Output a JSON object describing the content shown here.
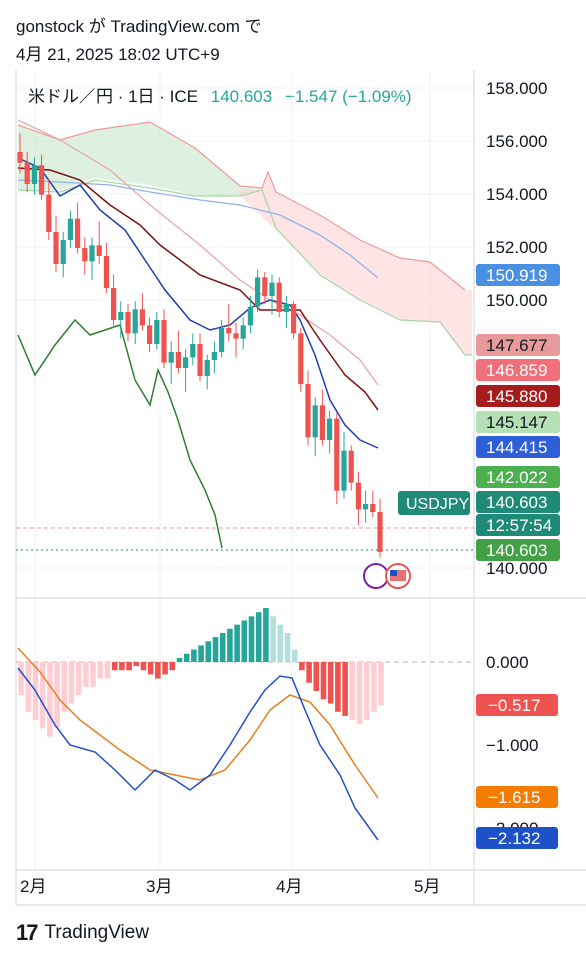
{
  "header": {
    "title": "gonstock が TradingView.com で",
    "timestamp": "4月 21, 2025 18:02 UTC+9"
  },
  "legend": {
    "symbol": "米ドル／円 · 1日 · ICE",
    "last": "140.603",
    "change": "−1.547 (−1.09%)"
  },
  "price_axis_labels": [
    "158.000",
    "156.000",
    "154.000",
    "152.000",
    "150.000",
    "140.000"
  ],
  "price_tags": [
    {
      "label": "150.919",
      "color": "#4a90e2"
    },
    {
      "label": "147.677",
      "color": "#e79a9a"
    },
    {
      "label": "146.859",
      "color": "#ef6f7a"
    },
    {
      "label": "145.880",
      "color": "#a61c1c"
    },
    {
      "label": "145.147",
      "color": "#b5dfb4"
    },
    {
      "label": "144.415",
      "color": "#2f5fd8"
    },
    {
      "label": "142.022",
      "color": "#4caf50"
    },
    {
      "label": "140.603",
      "color": "#1f8a78"
    },
    {
      "label": "12:57:54",
      "color": "#1f8a78"
    },
    {
      "label": "140.603",
      "color": "#43a047"
    }
  ],
  "symbol_tag": {
    "label": "USDJPY",
    "color": "#1f8a78"
  },
  "macd_axis_labels": [
    "0.000",
    "−1.000",
    "−2.000"
  ],
  "macd_tags": [
    {
      "label": "−0.517",
      "color": "#ef5350"
    },
    {
      "label": "−1.615",
      "color": "#f57c00"
    },
    {
      "label": "−2.132",
      "color": "#1e50c8"
    }
  ],
  "time_labels": [
    "2月",
    "3月",
    "4月",
    "5月"
  ],
  "footer": {
    "brand": "TradingView"
  },
  "colors": {
    "up": "#26a69a",
    "down": "#ef5350",
    "tenkan": "#1e3fb0",
    "kijun": "#7b1010",
    "chikou": "#2e7d32",
    "cloud_bull": "#c8e6c9",
    "cloud_bear": "#fdd5d5",
    "macd": "#1e50c8",
    "signal": "#e67e22"
  },
  "chart_data": {
    "type": "candlestick",
    "symbol": "USDJPY",
    "interval": "1D",
    "last_price": 140.603,
    "change": -1.547,
    "change_pct": -1.09,
    "ohlc": [
      [
        155.6,
        156.3,
        154.8,
        155.2
      ],
      [
        155.2,
        155.6,
        154.1,
        154.4
      ],
      [
        154.4,
        155.4,
        154.0,
        155.1
      ],
      [
        155.1,
        155.5,
        153.8,
        154.0
      ],
      [
        154.0,
        154.6,
        152.3,
        152.6
      ],
      [
        152.6,
        153.2,
        151.1,
        151.4
      ],
      [
        151.4,
        152.6,
        150.9,
        152.3
      ],
      [
        152.3,
        153.4,
        152.0,
        153.1
      ],
      [
        153.1,
        153.7,
        151.8,
        152.0
      ],
      [
        152.0,
        152.4,
        151.0,
        151.5
      ],
      [
        151.5,
        152.4,
        150.8,
        152.1
      ],
      [
        152.1,
        153.0,
        151.4,
        151.7
      ],
      [
        151.7,
        152.2,
        150.3,
        150.5
      ],
      [
        150.5,
        151.0,
        149.0,
        149.3
      ],
      [
        149.3,
        150.0,
        148.6,
        149.6
      ],
      [
        149.6,
        149.9,
        148.5,
        148.8
      ],
      [
        148.8,
        150.0,
        148.4,
        149.7
      ],
      [
        149.7,
        150.3,
        148.9,
        149.1
      ],
      [
        149.1,
        149.4,
        148.1,
        148.4
      ],
      [
        148.4,
        149.6,
        148.2,
        149.3
      ],
      [
        149.3,
        149.7,
        147.5,
        147.7
      ],
      [
        147.7,
        148.5,
        146.9,
        148.1
      ],
      [
        148.1,
        148.9,
        147.3,
        147.5
      ],
      [
        147.5,
        148.2,
        146.6,
        147.9
      ],
      [
        147.9,
        148.8,
        147.6,
        148.4
      ],
      [
        148.4,
        148.8,
        147.0,
        147.2
      ],
      [
        147.2,
        148.0,
        146.7,
        147.8
      ],
      [
        147.8,
        148.5,
        147.3,
        148.1
      ],
      [
        148.1,
        149.3,
        147.9,
        149.0
      ],
      [
        149.0,
        149.9,
        148.5,
        148.8
      ],
      [
        148.8,
        149.2,
        147.9,
        148.6
      ],
      [
        148.6,
        149.4,
        148.2,
        149.1
      ],
      [
        149.1,
        150.2,
        148.8,
        149.8
      ],
      [
        149.8,
        151.2,
        149.6,
        150.9
      ],
      [
        150.9,
        151.1,
        149.9,
        150.2
      ],
      [
        150.2,
        151.0,
        149.5,
        150.7
      ],
      [
        150.7,
        150.9,
        149.4,
        149.6
      ],
      [
        149.6,
        150.2,
        149.0,
        149.9
      ],
      [
        149.9,
        150.0,
        148.6,
        148.8
      ],
      [
        148.8,
        149.0,
        146.6,
        146.9
      ],
      [
        146.9,
        147.4,
        144.6,
        144.9
      ],
      [
        144.9,
        146.4,
        144.2,
        146.1
      ],
      [
        146.1,
        146.7,
        144.6,
        144.8
      ],
      [
        144.8,
        145.9,
        144.3,
        145.6
      ],
      [
        145.6,
        145.8,
        142.4,
        142.9
      ],
      [
        142.9,
        145.1,
        142.6,
        144.4
      ],
      [
        144.4,
        144.6,
        142.9,
        143.2
      ],
      [
        143.2,
        143.6,
        141.6,
        142.2
      ],
      [
        142.2,
        142.9,
        141.7,
        142.4
      ],
      [
        142.4,
        142.9,
        141.9,
        142.1
      ],
      [
        142.1,
        142.6,
        140.4,
        140.6
      ]
    ],
    "macd_histogram": [
      -0.4,
      -0.6,
      -0.7,
      -0.8,
      -0.9,
      -0.8,
      -0.6,
      -0.5,
      -0.4,
      -0.3,
      -0.3,
      -0.2,
      -0.2,
      -0.1,
      -0.1,
      -0.1,
      -0.05,
      -0.1,
      -0.15,
      -0.2,
      -0.15,
      -0.1,
      0.05,
      0.1,
      0.15,
      0.2,
      0.25,
      0.3,
      0.35,
      0.4,
      0.45,
      0.5,
      0.55,
      0.6,
      0.65,
      0.55,
      0.45,
      0.35,
      0.15,
      -0.1,
      -0.25,
      -0.35,
      -0.45,
      -0.5,
      -0.6,
      -0.65,
      -0.7,
      -0.75,
      -0.7,
      -0.6,
      -0.517
    ]
  }
}
